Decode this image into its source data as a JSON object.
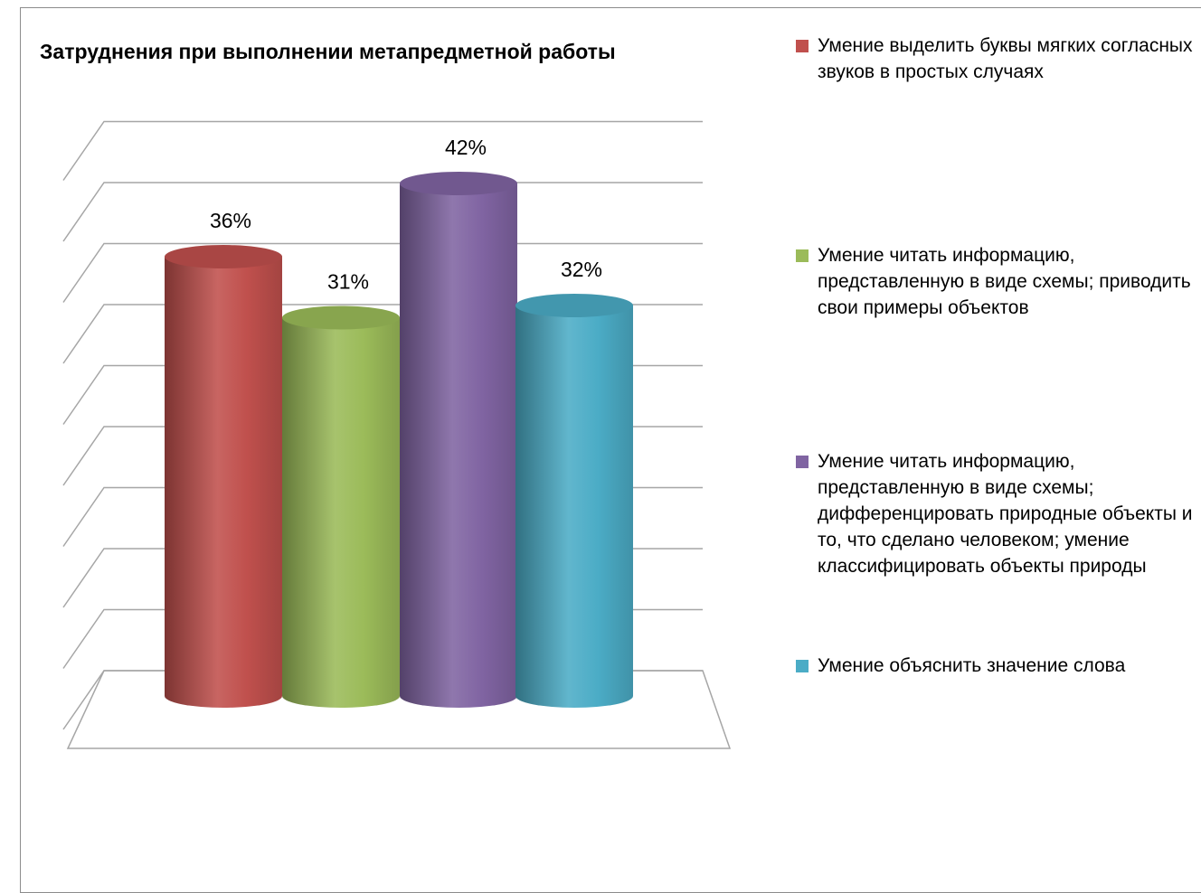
{
  "chart_data": {
    "type": "bar",
    "title": "Затруднения при выполнении метапредметной работы",
    "ylim": [
      0,
      45
    ],
    "grid": true,
    "legend_position": "right",
    "value_labels": [
      "36%",
      "31%",
      "42%",
      "32%"
    ],
    "series": [
      {
        "name": "Умение выделить буквы мягких согласных звуков в простых случаях",
        "value": 36,
        "color": "#c0504d"
      },
      {
        "name": "Умение читать информацию, представленную в виде схемы; приводить свои примеры объектов",
        "value": 31,
        "color": "#9bbb59"
      },
      {
        "name": "Умение читать информацию, представленную в виде схемы; дифференцировать природные объекты и то, что сделано человеком; умение классифицировать объекты природы",
        "value": 42,
        "color": "#8064a2"
      },
      {
        "name": "Умение объяснить значение слова",
        "value": 32,
        "color": "#4bacc6"
      }
    ]
  }
}
